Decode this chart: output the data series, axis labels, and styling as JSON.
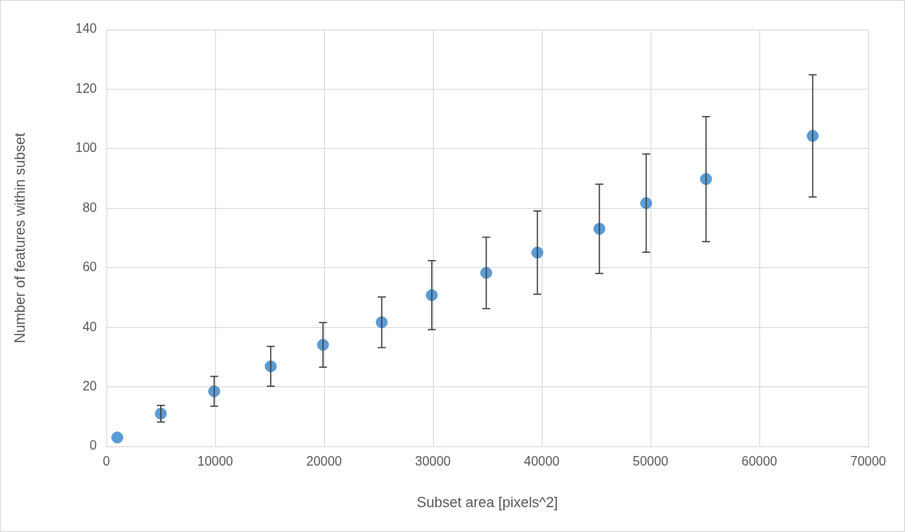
{
  "chart_data": {
    "type": "scatter",
    "xlabel": "Subset area [pixels^2]",
    "ylabel": "Number of features within subset",
    "x": [
      1000,
      5000,
      9900,
      15100,
      19900,
      25300,
      29900,
      34900,
      39600,
      45300,
      49600,
      55100,
      64900
    ],
    "values": [
      3,
      11,
      18.5,
      26.9,
      34.1,
      41.7,
      50.8,
      58.3,
      65.1,
      73.1,
      81.7,
      89.8,
      104.3
    ],
    "errors": [
      null,
      2.8,
      5,
      6.7,
      7.5,
      8.5,
      11.6,
      12,
      14,
      15,
      16.5,
      21,
      20.5
    ],
    "color": "#5b9bd5",
    "marker": "circle",
    "grid": true,
    "legend": false,
    "xlim": [
      0,
      70000
    ],
    "xticks": [
      0,
      10000,
      20000,
      30000,
      40000,
      50000,
      60000,
      70000
    ],
    "ylim": [
      0,
      140
    ],
    "yticks": [
      0,
      20,
      40,
      60,
      80,
      100,
      120,
      140
    ]
  }
}
